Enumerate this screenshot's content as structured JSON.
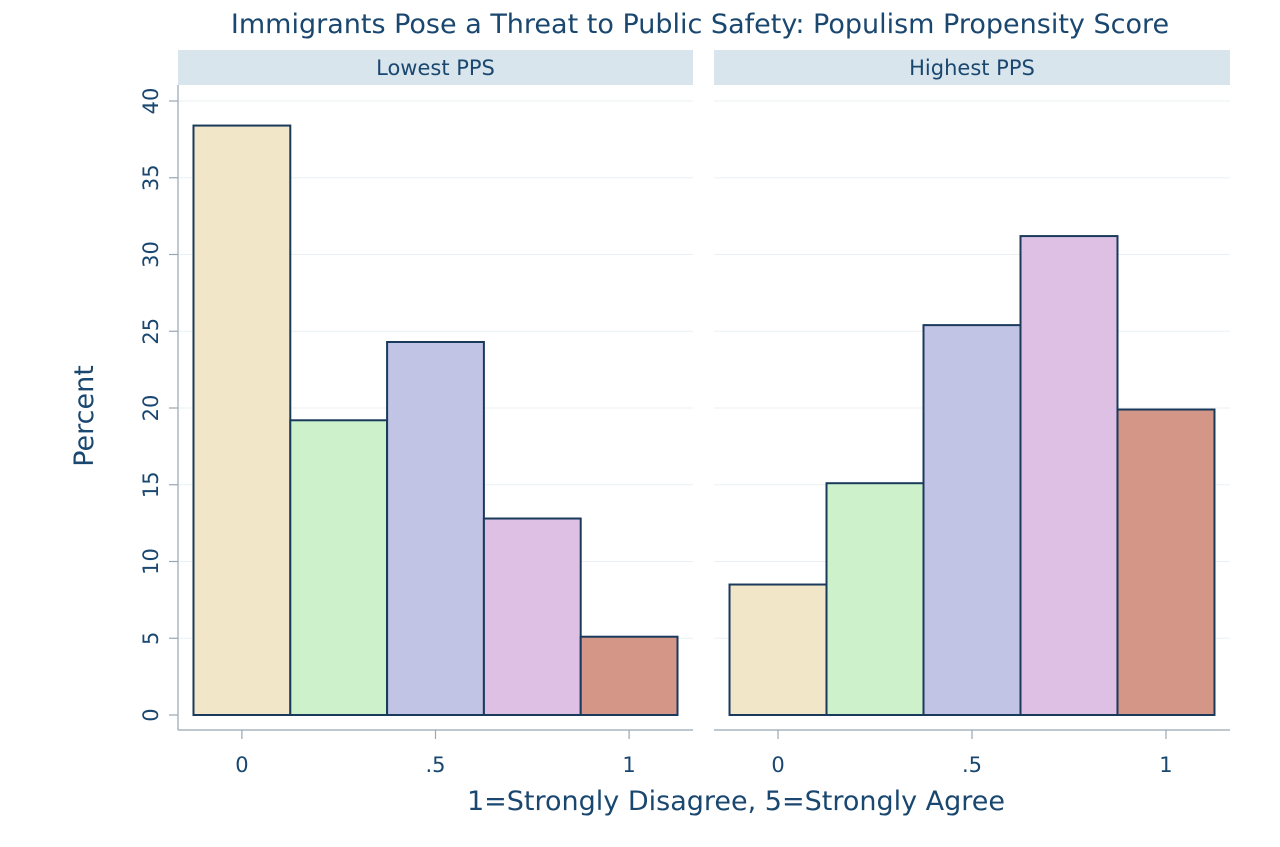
{
  "chart_data": {
    "type": "bar",
    "title": "Immigrants Pose a Threat to Public Safety: Populism Propensity Score",
    "xlabel": "1=Strongly Disagree, 5=Strongly Agree",
    "ylabel": "Percent",
    "ylim": [
      0,
      40
    ],
    "yticks": [
      0,
      5,
      10,
      15,
      20,
      25,
      30,
      35,
      40
    ],
    "xlim": [
      -0.165,
      1.165
    ],
    "xticks": [
      {
        "value": 0,
        "label": "0"
      },
      {
        "value": 0.5,
        "label": ".5"
      },
      {
        "value": 1,
        "label": "1"
      }
    ],
    "bin_width": 0.25,
    "bin_centers": [
      0,
      0.25,
      0.5,
      0.75,
      1
    ],
    "bar_colors": [
      "#f1e6c8",
      "#cdf1cb",
      "#c1c4e5",
      "#dfc0e5",
      "#d49686"
    ],
    "bar_outline": "#1a3a5c",
    "strip_color": "#d9e5ec",
    "panels": [
      {
        "name": "Lowest PPS",
        "values": [
          38.4,
          19.2,
          24.3,
          12.8,
          5.1
        ]
      },
      {
        "name": "Highest PPS",
        "values": [
          8.5,
          15.1,
          25.4,
          31.2,
          19.9
        ]
      }
    ],
    "grid": true
  }
}
